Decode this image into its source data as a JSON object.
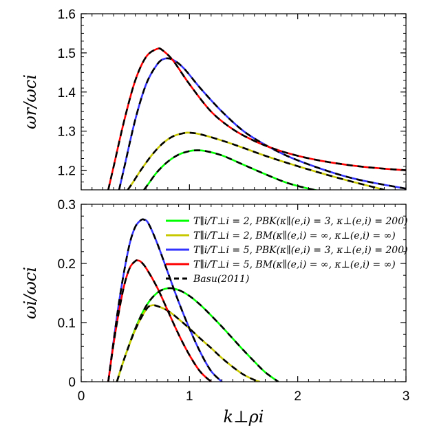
{
  "chart_data": [
    {
      "type": "line",
      "panel": "top",
      "ylabel": "ωr/ωci",
      "xlim": [
        0,
        3
      ],
      "ylim": [
        1.15,
        1.6
      ],
      "yticks": [
        "1.2",
        "1.3",
        "1.4",
        "1.5",
        "1.6"
      ],
      "ytick_values": [
        1.2,
        1.3,
        1.4,
        1.5,
        1.6
      ],
      "series": [
        {
          "name": "T∥i/T⊥i = 2, PBK(κ∥(e,i) = 3, κ⊥(e,i) = 200)",
          "color": "#00ff00",
          "dashed_overlay": true,
          "x": [
            0.58,
            0.62,
            0.7,
            0.8,
            0.9,
            1.0,
            1.07,
            1.15,
            1.3,
            1.5,
            1.7,
            1.9,
            2.1,
            2.25
          ],
          "y": [
            1.15,
            1.165,
            1.195,
            1.222,
            1.24,
            1.249,
            1.251,
            1.249,
            1.238,
            1.214,
            1.19,
            1.168,
            1.153,
            1.145
          ]
        },
        {
          "name": "T∥i/T⊥i = 2, BM(κ∥(e,i) = ∞, κ⊥(e,i) = ∞)",
          "color": "#c8c800",
          "dashed_overlay": true,
          "x": [
            0.43,
            0.48,
            0.55,
            0.65,
            0.75,
            0.85,
            0.95,
            1.0,
            1.1,
            1.3,
            1.5,
            1.7,
            1.9,
            2.1,
            2.3,
            2.5,
            2.7,
            2.8
          ],
          "y": [
            1.15,
            1.17,
            1.2,
            1.238,
            1.268,
            1.287,
            1.295,
            1.296,
            1.292,
            1.276,
            1.257,
            1.237,
            1.219,
            1.202,
            1.186,
            1.171,
            1.157,
            1.15
          ]
        },
        {
          "name": "T∥i/T⊥i = 5, PBK(κ∥(e,i) = 3, κ⊥(e,i) = 200)",
          "color": "#3333ff",
          "dashed_overlay": true,
          "x": [
            0.35,
            0.4,
            0.5,
            0.6,
            0.7,
            0.77,
            0.85,
            0.95,
            1.1,
            1.3,
            1.5,
            1.7,
            1.9,
            2.1,
            2.3,
            2.5,
            2.7,
            2.9,
            3.0
          ],
          "y": [
            1.15,
            1.21,
            1.33,
            1.42,
            1.47,
            1.485,
            1.482,
            1.46,
            1.41,
            1.35,
            1.3,
            1.265,
            1.237,
            1.215,
            1.196,
            1.18,
            1.168,
            1.158,
            1.153
          ]
        },
        {
          "name": "T∥i/T⊥i = 5, BM(κ∥(e,i) = ∞, κ⊥(e,i) = ∞)",
          "color": "#ff0000",
          "dashed_overlay": true,
          "x": [
            0.25,
            0.3,
            0.4,
            0.5,
            0.6,
            0.7,
            0.75,
            0.85,
            1.0,
            1.2,
            1.4,
            1.6,
            1.8,
            2.0,
            2.2,
            2.4,
            2.6,
            2.8,
            3.0
          ],
          "y": [
            1.15,
            1.21,
            1.33,
            1.43,
            1.49,
            1.51,
            1.507,
            1.48,
            1.42,
            1.35,
            1.305,
            1.275,
            1.253,
            1.237,
            1.225,
            1.216,
            1.209,
            1.204,
            1.2
          ]
        }
      ]
    },
    {
      "type": "line",
      "panel": "bottom",
      "xlabel": "k⊥ρi",
      "ylabel": "ωi/ωci",
      "xlim": [
        0,
        3
      ],
      "ylim": [
        0,
        0.3
      ],
      "xticks": [
        "0",
        "1",
        "2",
        "3"
      ],
      "xtick_values": [
        0,
        1,
        2,
        3
      ],
      "yticks": [
        "0",
        "0.1",
        "0.2",
        "0.3"
      ],
      "ytick_values": [
        0,
        0.1,
        0.2,
        0.3
      ],
      "legend_position": "top-right",
      "series": [
        {
          "name": "T∥i/T⊥i = 2, PBK(κ∥(e,i) = 3, κ⊥(e,i) = 200)",
          "color": "#00ff00",
          "dashed_overlay": true,
          "x": [
            0.33,
            0.4,
            0.5,
            0.6,
            0.7,
            0.8,
            0.9,
            1.0,
            1.1,
            1.2,
            1.3,
            1.4,
            1.5,
            1.6,
            1.7,
            1.82
          ],
          "y": [
            0,
            0.04,
            0.09,
            0.128,
            0.15,
            0.158,
            0.155,
            0.145,
            0.13,
            0.112,
            0.093,
            0.073,
            0.053,
            0.034,
            0.016,
            0
          ]
        },
        {
          "name": "T∥i/T⊥i = 2, BM(κ∥(e,i) = ∞, κ⊥(e,i) = ∞)",
          "color": "#c8c800",
          "dashed_overlay": true,
          "x": [
            0.33,
            0.4,
            0.5,
            0.6,
            0.65,
            0.7,
            0.8,
            0.9,
            1.0,
            1.1,
            1.2,
            1.3,
            1.4,
            1.5,
            1.6,
            1.65
          ],
          "y": [
            0,
            0.04,
            0.088,
            0.122,
            0.129,
            0.128,
            0.12,
            0.106,
            0.09,
            0.073,
            0.057,
            0.04,
            0.025,
            0.012,
            0.003,
            0
          ]
        },
        {
          "name": "T∥i/T⊥i = 5, PBK(κ∥(e,i) = 3, κ⊥(e,i) = 200)",
          "color": "#3333ff",
          "dashed_overlay": true,
          "x": [
            0.25,
            0.3,
            0.35,
            0.4,
            0.45,
            0.5,
            0.55,
            0.58,
            0.62,
            0.7,
            0.8,
            0.9,
            1.0,
            1.1,
            1.2,
            1.3
          ],
          "y": [
            0,
            0.07,
            0.135,
            0.19,
            0.235,
            0.262,
            0.273,
            0.274,
            0.268,
            0.235,
            0.185,
            0.135,
            0.09,
            0.05,
            0.018,
            0
          ]
        },
        {
          "name": "T∥i/T⊥i = 5, BM(κ∥(e,i) = ∞, κ⊥(e,i) = ∞)",
          "color": "#ff0000",
          "dashed_overlay": true,
          "x": [
            0.25,
            0.3,
            0.35,
            0.4,
            0.45,
            0.5,
            0.52,
            0.55,
            0.6,
            0.7,
            0.8,
            0.9,
            1.0,
            1.1,
            1.2
          ],
          "y": [
            0,
            0.065,
            0.12,
            0.165,
            0.193,
            0.204,
            0.205,
            0.203,
            0.192,
            0.16,
            0.12,
            0.08,
            0.045,
            0.017,
            0
          ]
        }
      ]
    }
  ],
  "legend": {
    "entries": [
      {
        "label": "T∥i/T⊥i = 2, PBK(κ∥(e,i) = 3, κ⊥(e,i) = 200)",
        "color": "#00ff00",
        "dashed": false
      },
      {
        "label": "T∥i/T⊥i = 2, BM(κ∥(e,i) = ∞, κ⊥(e,i) = ∞)",
        "color": "#c8c800",
        "dashed": false
      },
      {
        "label": "T∥i/T⊥i = 5, PBK(κ∥(e,i) = 3, κ⊥(e,i) = 200)",
        "color": "#3333ff",
        "dashed": false
      },
      {
        "label": "T∥i/T⊥i = 5, BM(κ∥(e,i) = ∞, κ⊥(e,i) = ∞)",
        "color": "#ff0000",
        "dashed": false
      },
      {
        "label": "Basu(2011)",
        "color": "#000000",
        "dashed": true
      }
    ]
  }
}
